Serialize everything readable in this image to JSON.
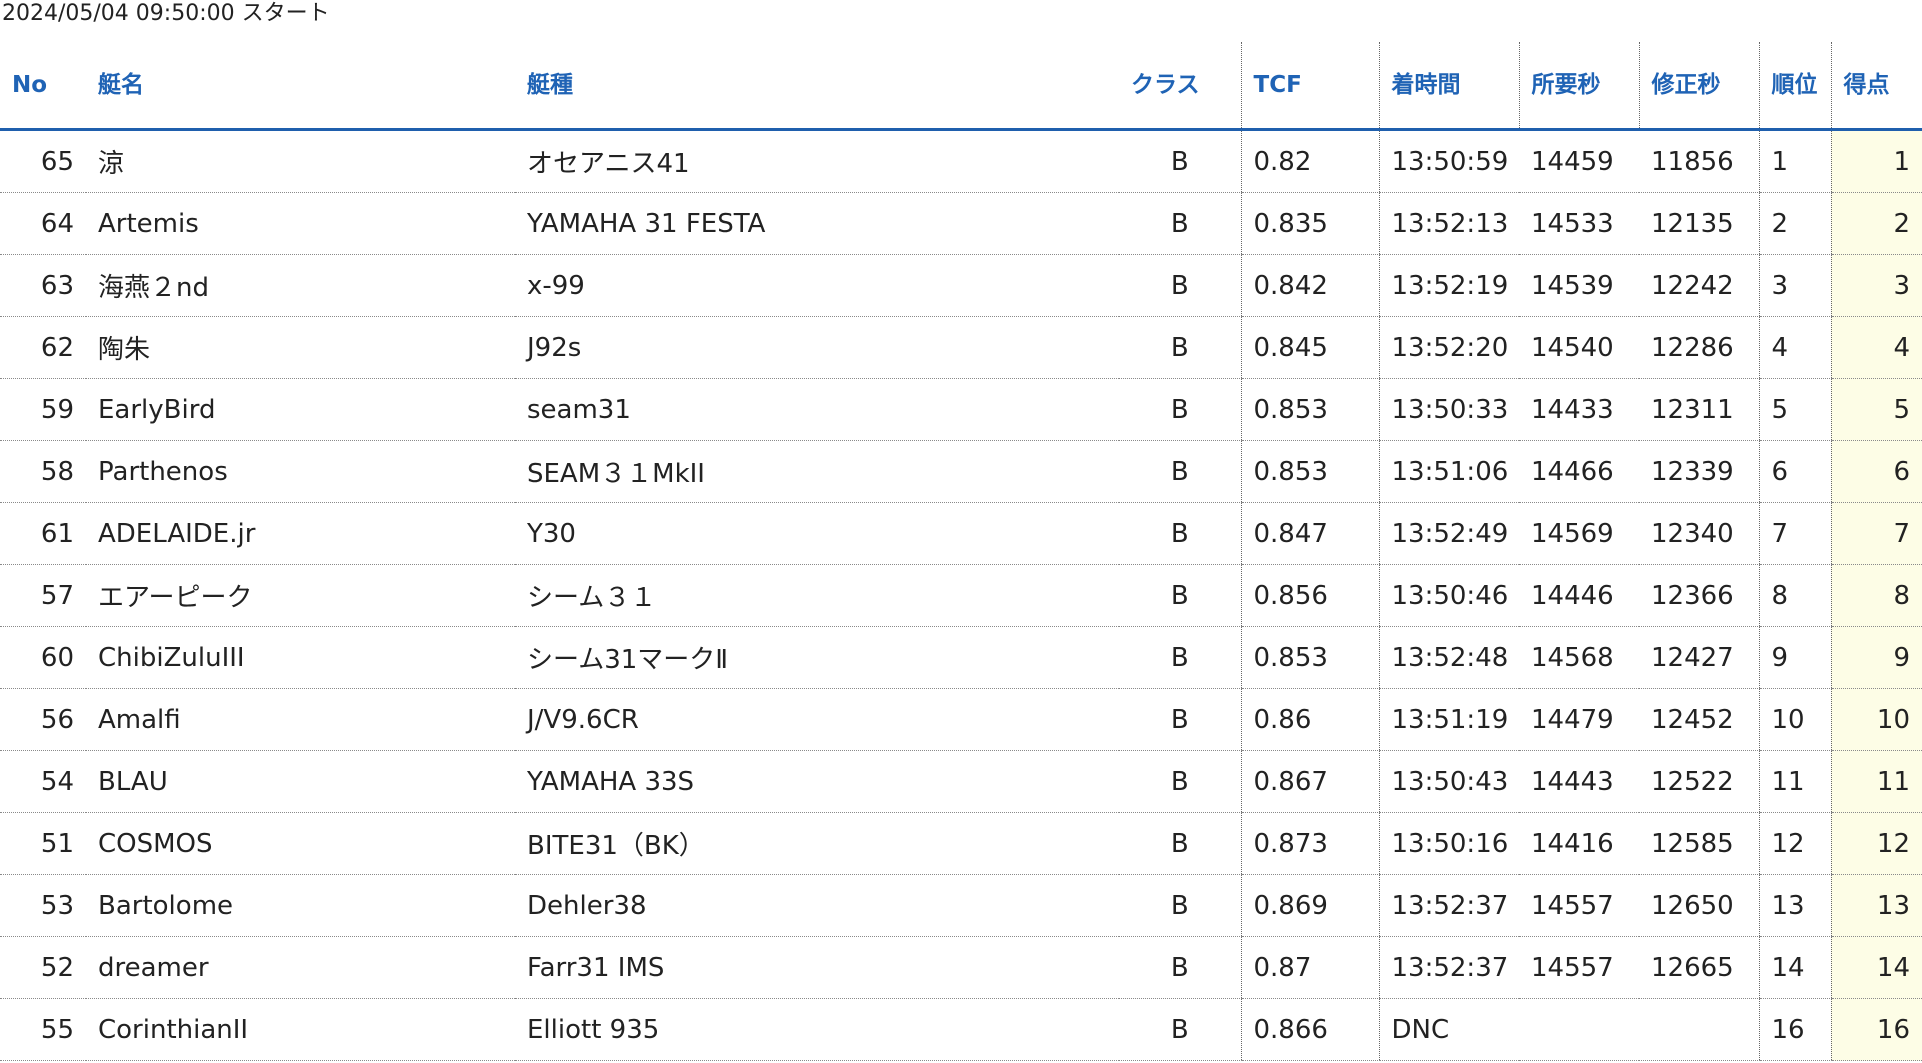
{
  "start_text": "2024/05/04 09:50:00 スタート",
  "headers": {
    "no": "No",
    "name": "艇名",
    "type": "艇種",
    "class": "クラス",
    "tcf": "TCF",
    "finish": "着時間",
    "elapsed": "所要秒",
    "corrected": "修正秒",
    "rank": "順位",
    "score": "得点"
  },
  "rows": [
    {
      "no": "65",
      "name": "涼",
      "type": "オセアニス41",
      "class": "B",
      "tcf": "0.82",
      "finish": "13:50:59",
      "elapsed": "14459",
      "corrected": "11856",
      "rank": "1",
      "score": "1"
    },
    {
      "no": "64",
      "name": "Artemis",
      "type": "YAMAHA 31 FESTA",
      "class": "B",
      "tcf": "0.835",
      "finish": "13:52:13",
      "elapsed": "14533",
      "corrected": "12135",
      "rank": "2",
      "score": "2"
    },
    {
      "no": "63",
      "name": "海燕２nd",
      "type": "x-99",
      "class": "B",
      "tcf": "0.842",
      "finish": "13:52:19",
      "elapsed": "14539",
      "corrected": "12242",
      "rank": "3",
      "score": "3"
    },
    {
      "no": "62",
      "name": "陶朱",
      "type": "J92s",
      "class": "B",
      "tcf": "0.845",
      "finish": "13:52:20",
      "elapsed": "14540",
      "corrected": "12286",
      "rank": "4",
      "score": "4"
    },
    {
      "no": "59",
      "name": "EarlyBird",
      "type": "seam31",
      "class": "B",
      "tcf": "0.853",
      "finish": "13:50:33",
      "elapsed": "14433",
      "corrected": "12311",
      "rank": "5",
      "score": "5"
    },
    {
      "no": "58",
      "name": "Parthenos",
      "type": "SEAM３１MkII",
      "class": "B",
      "tcf": "0.853",
      "finish": "13:51:06",
      "elapsed": "14466",
      "corrected": "12339",
      "rank": "6",
      "score": "6"
    },
    {
      "no": "61",
      "name": "ADELAIDE.jr",
      "type": "Y30",
      "class": "B",
      "tcf": "0.847",
      "finish": "13:52:49",
      "elapsed": "14569",
      "corrected": "12340",
      "rank": "7",
      "score": "7"
    },
    {
      "no": "57",
      "name": "エアーピーク",
      "type": "シーム３１",
      "class": "B",
      "tcf": "0.856",
      "finish": "13:50:46",
      "elapsed": "14446",
      "corrected": "12366",
      "rank": "8",
      "score": "8"
    },
    {
      "no": "60",
      "name": "ChibiZuluIII",
      "type": "シーム31マークⅡ",
      "class": "B",
      "tcf": "0.853",
      "finish": "13:52:48",
      "elapsed": "14568",
      "corrected": "12427",
      "rank": "9",
      "score": "9"
    },
    {
      "no": "56",
      "name": "Amalfi",
      "type": "J/V9.6CR",
      "class": "B",
      "tcf": "0.86",
      "finish": "13:51:19",
      "elapsed": "14479",
      "corrected": "12452",
      "rank": "10",
      "score": "10"
    },
    {
      "no": "54",
      "name": "BLAU",
      "type": "YAMAHA 33S",
      "class": "B",
      "tcf": "0.867",
      "finish": "13:50:43",
      "elapsed": "14443",
      "corrected": "12522",
      "rank": "11",
      "score": "11"
    },
    {
      "no": "51",
      "name": "COSMOS",
      "type": "BITE31（BK）",
      "class": "B",
      "tcf": "0.873",
      "finish": "13:50:16",
      "elapsed": "14416",
      "corrected": "12585",
      "rank": "12",
      "score": "12"
    },
    {
      "no": "53",
      "name": "Bartolome",
      "type": "Dehler38",
      "class": "B",
      "tcf": "0.869",
      "finish": "13:52:37",
      "elapsed": "14557",
      "corrected": "12650",
      "rank": "13",
      "score": "13"
    },
    {
      "no": "52",
      "name": "dreamer",
      "type": "Farr31 IMS",
      "class": "B",
      "tcf": "0.87",
      "finish": "13:52:37",
      "elapsed": "14557",
      "corrected": "12665",
      "rank": "14",
      "score": "14"
    },
    {
      "no": "55",
      "name": "CorinthianII",
      "type": "Elliott 935",
      "class": "B",
      "tcf": "0.866",
      "finish": "DNC",
      "elapsed": "",
      "corrected": "",
      "rank": "16",
      "score": "16"
    }
  ]
}
